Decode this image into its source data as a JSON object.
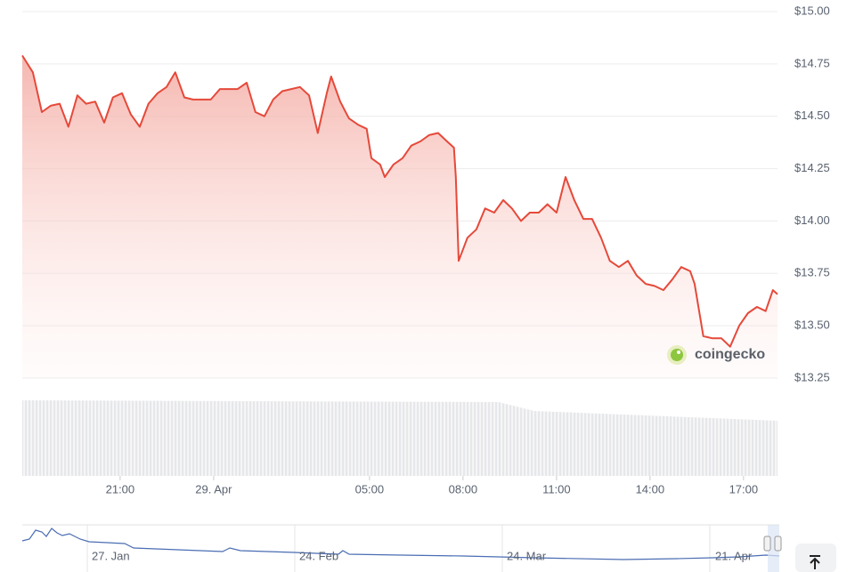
{
  "chart_data": {
    "type": "line",
    "x": [
      -6.14,
      -5.8,
      -5.51,
      -5.23,
      -4.94,
      -4.66,
      -4.37,
      -4.09,
      -3.8,
      -3.51,
      -3.23,
      -2.94,
      -2.66,
      -2.37,
      -2.09,
      -1.8,
      -1.51,
      -1.23,
      -0.94,
      -0.66,
      -0.37,
      -0.09,
      0.2,
      0.49,
      0.77,
      1.06,
      1.34,
      1.63,
      1.91,
      2.2,
      2.49,
      2.77,
      3.06,
      3.34,
      3.63,
      3.77,
      4.06,
      4.34,
      4.63,
      4.91,
      5.06,
      5.34,
      5.49,
      5.77,
      6.06,
      6.34,
      6.63,
      6.91,
      7.2,
      7.49,
      7.71,
      7.77,
      7.86,
      8.14,
      8.43,
      8.71,
      9.0,
      9.29,
      9.57,
      9.86,
      10.14,
      10.43,
      10.71,
      11.0,
      11.29,
      11.57,
      11.86,
      12.14,
      12.43,
      12.71,
      13.0,
      13.29,
      13.57,
      13.86,
      14.14,
      14.43,
      14.71,
      15.0,
      15.29,
      15.43,
      15.71,
      16.0,
      16.29,
      16.57,
      16.86,
      17.14,
      17.43,
      17.71,
      17.94,
      18.09
    ],
    "series": [
      {
        "color": "#e5493a",
        "values": [
          14.79,
          14.71,
          14.52,
          14.55,
          14.56,
          14.45,
          14.6,
          14.56,
          14.57,
          14.47,
          14.59,
          14.61,
          14.51,
          14.45,
          14.56,
          14.61,
          14.64,
          14.71,
          14.59,
          14.58,
          14.58,
          14.58,
          14.63,
          14.63,
          14.63,
          14.66,
          14.52,
          14.5,
          14.58,
          14.62,
          14.63,
          14.64,
          14.6,
          14.42,
          14.61,
          14.69,
          14.57,
          14.49,
          14.46,
          14.44,
          14.3,
          14.27,
          14.21,
          14.27,
          14.3,
          14.36,
          14.38,
          14.41,
          14.42,
          14.38,
          14.35,
          14.21,
          13.81,
          13.92,
          13.96,
          14.06,
          14.04,
          14.1,
          14.06,
          14.0,
          14.04,
          14.04,
          14.08,
          14.04,
          14.21,
          14.1,
          14.01,
          14.01,
          13.92,
          13.81,
          13.78,
          13.81,
          13.74,
          13.7,
          13.69,
          13.67,
          13.72,
          13.78,
          13.76,
          13.7,
          13.45,
          13.44,
          13.44,
          13.4,
          13.5,
          13.56,
          13.59,
          13.57,
          13.67,
          13.65
        ]
      }
    ],
    "xlim": [
      -6.14,
      18.09
    ],
    "xticks": [
      {
        "value": -3,
        "label": "21:00"
      },
      {
        "value": 0,
        "label": "29. Apr"
      },
      {
        "value": 5,
        "label": "05:00"
      },
      {
        "value": 8,
        "label": "08:00"
      },
      {
        "value": 11,
        "label": "11:00"
      },
      {
        "value": 14,
        "label": "14:00"
      },
      {
        "value": 17,
        "label": "17:00"
      }
    ],
    "ylim": [
      13.25,
      15.0
    ],
    "yticks": [
      {
        "value": 13.25,
        "label": "$13.25"
      },
      {
        "value": 13.5,
        "label": "$13.50"
      },
      {
        "value": 13.75,
        "label": "$13.75"
      },
      {
        "value": 14.0,
        "label": "$14.00"
      },
      {
        "value": 14.25,
        "label": "$14.25"
      },
      {
        "value": 14.5,
        "label": "$14.50"
      },
      {
        "value": 14.75,
        "label": "$14.75"
      },
      {
        "value": 15.0,
        "label": "$15.00"
      }
    ],
    "grid": true,
    "watermark": "coingecko",
    "navigator_labels": [
      "27. Jan",
      "24. Feb",
      "24. Mar",
      "21. Apr"
    ]
  }
}
